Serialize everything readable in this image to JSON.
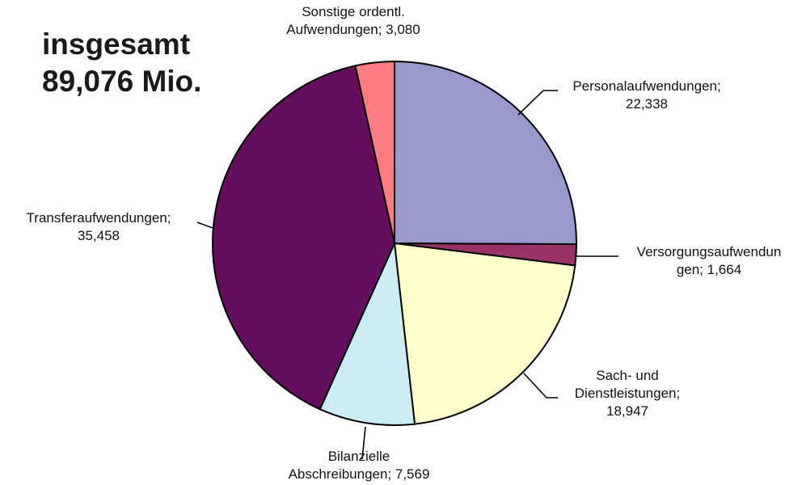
{
  "total": {
    "line1": "insgesamt",
    "line2": "89,076 Mio."
  },
  "chart_data": {
    "type": "pie",
    "total_value": 89.076,
    "slices": [
      {
        "name": "Personalaufwendungen",
        "value": 22.338,
        "label_lines": [
          "Personalaufwendungen;",
          "22,338"
        ],
        "color": "#9999cc"
      },
      {
        "name": "Versorgungsaufwendungen",
        "value": 1.664,
        "label_lines": [
          "Versorgungsaufwendun",
          "gen; 1,664"
        ],
        "color": "#993366"
      },
      {
        "name": "Sach- und Dienstleistungen",
        "value": 18.947,
        "label_lines": [
          "Sach- und",
          "Dienstleistungen;",
          "18,947"
        ],
        "color": "#ffffcc"
      },
      {
        "name": "Bilanzielle Abschreibungen",
        "value": 7.569,
        "label_lines": [
          "Bilanzielle",
          "Abschreibungen; 7,569"
        ],
        "color": "#ccecf4"
      },
      {
        "name": "Transferaufwendungen",
        "value": 35.458,
        "label_lines": [
          "Transferaufwendungen;",
          "35,458"
        ],
        "color": "#660e5e"
      },
      {
        "name": "Sonstige ordentl. Aufwendungen",
        "value": 3.08,
        "label_lines": [
          "Sonstige ordentl.",
          "Aufwendungen; 3,080"
        ],
        "color": "#ff7c80"
      }
    ]
  }
}
